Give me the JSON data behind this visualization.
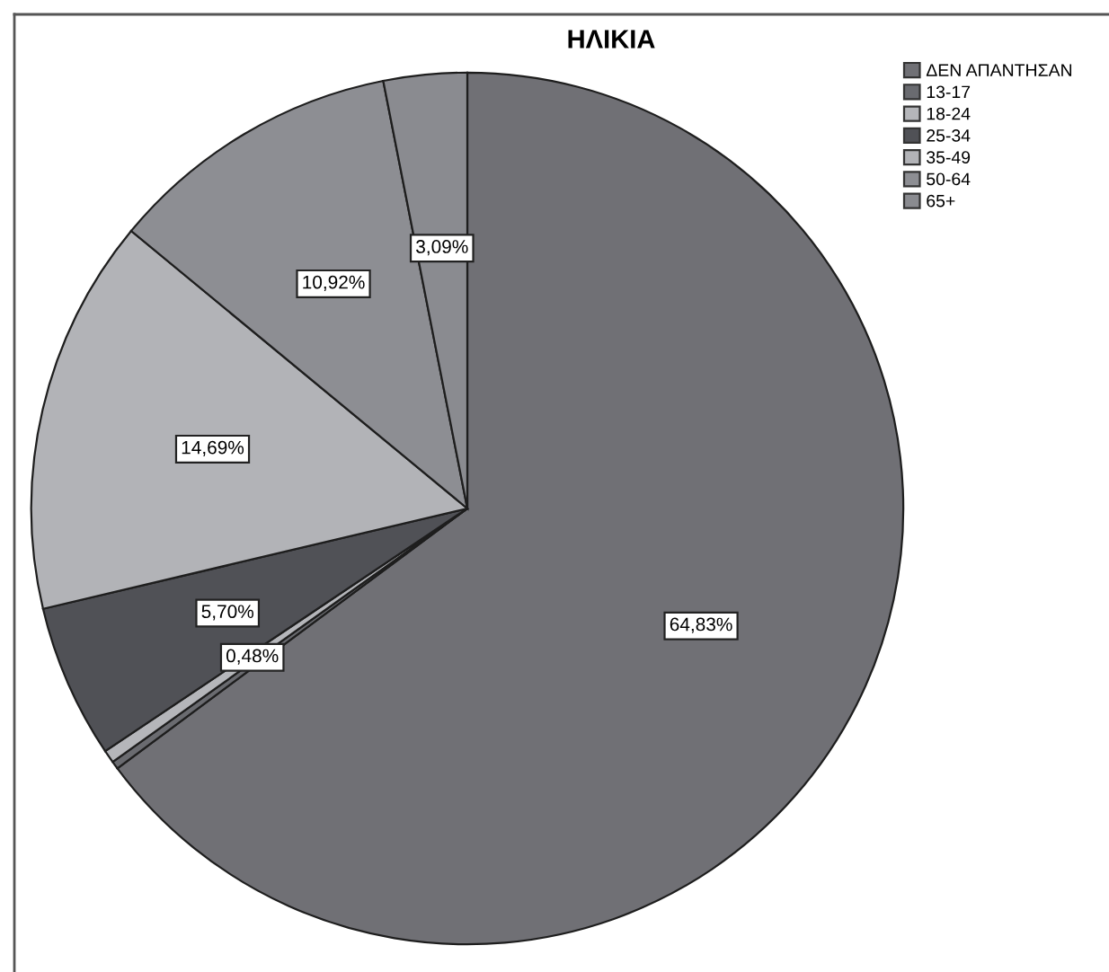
{
  "chart_data": {
    "type": "pie",
    "title": "ΗΛΙΚΙΑ",
    "categories": [
      "ΔΕΝ ΑΠΑΝΤΗΣΑΝ",
      "13-17",
      "18-24",
      "25-34",
      "35-49",
      "50-64",
      "65+"
    ],
    "values": [
      64.83,
      0.29,
      0.48,
      5.7,
      14.69,
      10.92,
      3.09
    ],
    "colors": [
      "#707075",
      "#6a6b70",
      "#b5b6ba",
      "#505156",
      "#b2b3b7",
      "#8d8e93",
      "#8a8b90"
    ],
    "value_labels": [
      "64,83%",
      null,
      "0,48%",
      "5,70%",
      "14,69%",
      "10,92%",
      "3,09%"
    ],
    "legend": "top right"
  }
}
